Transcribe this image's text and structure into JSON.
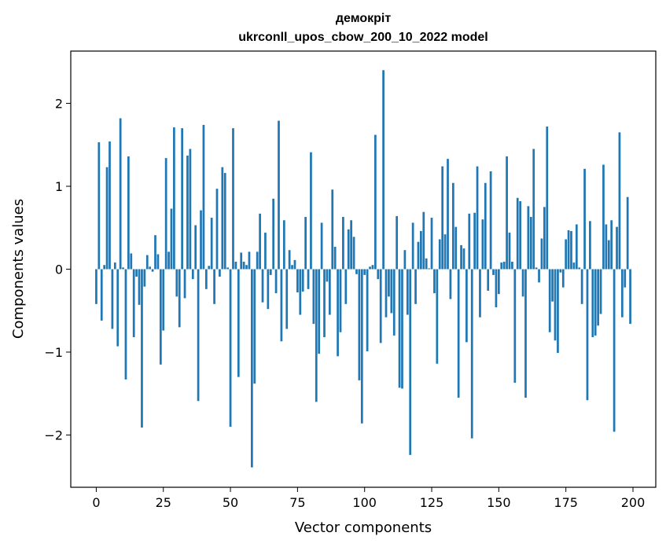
{
  "chart_data": {
    "type": "bar",
    "title_lines": [
      "демокріт",
      "ukrconll_upos_cbow_200_10_2022 model"
    ],
    "xlabel": "Vector components",
    "ylabel": "Components values",
    "xlim": [
      -9.5,
      208.5
    ],
    "ylim": [
      -2.63,
      2.63
    ],
    "x_ticks": [
      0,
      25,
      50,
      75,
      100,
      125,
      150,
      175,
      200
    ],
    "y_ticks": [
      -2,
      -1,
      0,
      1,
      2
    ],
    "y_tick_labels": [
      "−2",
      "−1",
      "0",
      "1",
      "2"
    ],
    "bar_color": "#1f77b4",
    "grid": false,
    "values": [
      -0.42,
      1.53,
      -0.62,
      0.05,
      1.23,
      1.54,
      -0.72,
      0.08,
      -0.93,
      1.82,
      0.02,
      -1.33,
      1.36,
      0.19,
      -0.82,
      -0.09,
      -0.43,
      -1.91,
      -0.21,
      0.17,
      0.03,
      -0.03,
      0.41,
      0.18,
      -1.15,
      -0.74,
      1.34,
      0.21,
      0.73,
      1.71,
      -0.33,
      -0.7,
      1.7,
      -0.35,
      1.37,
      1.45,
      -0.12,
      0.53,
      -1.59,
      0.71,
      1.74,
      -0.24,
      0.04,
      0.62,
      -0.42,
      0.97,
      -0.09,
      1.23,
      1.16,
      0.02,
      -1.9,
      1.7,
      0.09,
      -1.3,
      0.2,
      0.09,
      0.05,
      0.21,
      -2.39,
      -1.38,
      0.21,
      0.67,
      -0.4,
      0.44,
      -0.48,
      -0.07,
      0.85,
      -0.29,
      1.79,
      -0.87,
      0.59,
      -0.72,
      0.23,
      0.05,
      0.11,
      -0.28,
      -0.55,
      -0.27,
      0.63,
      -0.24,
      1.41,
      -0.66,
      -1.6,
      -1.02,
      0.56,
      -0.82,
      -0.15,
      -0.55,
      0.96,
      0.27,
      -1.05,
      -0.76,
      0.63,
      -0.42,
      0.48,
      0.59,
      0.39,
      -0.06,
      -1.34,
      -1.86,
      -0.07,
      -0.99,
      0.03,
      0.05,
      1.62,
      -0.12,
      -0.89,
      2.4,
      -0.58,
      -0.33,
      -0.53,
      -0.8,
      0.64,
      -1.43,
      -1.44,
      0.23,
      -0.55,
      -2.24,
      0.56,
      -0.42,
      0.33,
      0.46,
      0.69,
      0.13,
      0.01,
      0.62,
      -0.29,
      -1.14,
      0.36,
      1.24,
      0.42,
      1.33,
      -0.36,
      1.04,
      0.51,
      -1.55,
      0.29,
      0.25,
      -0.88,
      0.67,
      -2.04,
      0.68,
      1.24,
      -0.58,
      0.6,
      1.04,
      -0.26,
      1.18,
      -0.07,
      -0.46,
      -0.3,
      0.08,
      0.09,
      1.36,
      0.44,
      0.09,
      -1.37,
      0.86,
      0.82,
      -0.33,
      -1.55,
      0.76,
      0.63,
      1.45,
      0.02,
      -0.16,
      0.37,
      0.75,
      1.72,
      -0.76,
      -0.39,
      -0.86,
      -1.01,
      -0.04,
      -0.22,
      0.36,
      0.47,
      0.46,
      0.08,
      0.54,
      0.02,
      -0.42,
      1.21,
      -1.58,
      0.58,
      -0.82,
      -0.8,
      -0.68,
      -0.54,
      1.26,
      0.54,
      0.35,
      0.59,
      -1.96,
      0.51,
      1.65,
      -0.58,
      -0.22,
      0.87,
      -0.66
    ]
  }
}
